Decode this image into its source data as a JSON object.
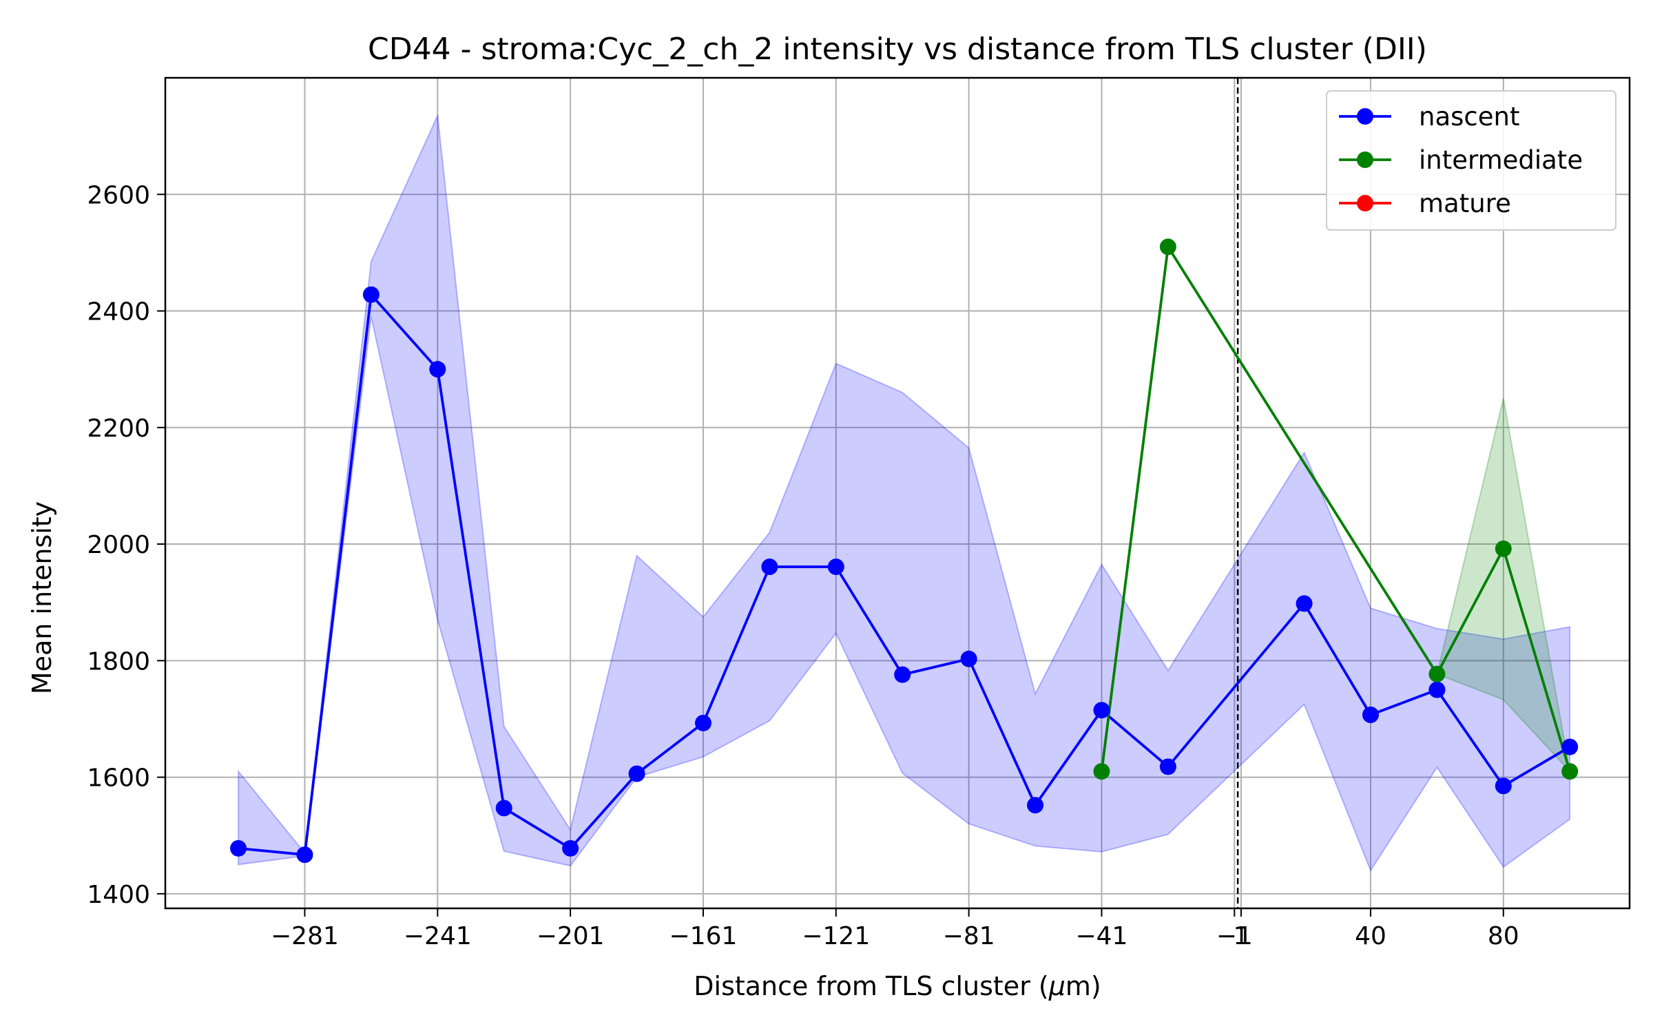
{
  "chart_data": {
    "type": "line",
    "title": "CD44 - stroma:Cyc_2_ch_2 intensity vs distance from TLS cluster (DII)",
    "xlabel": "Distance from TLS cluster (μm)",
    "ylabel": "Mean intensity",
    "xlim": [
      -323,
      118
    ],
    "ylim": [
      1375,
      2800
    ],
    "x_ticks": [
      -281,
      -241,
      -201,
      -161,
      -121,
      -81,
      -41,
      -1,
      1,
      40,
      80
    ],
    "x_tick_labels": [
      "−281",
      "−241",
      "−201",
      "−161",
      "−121",
      "−81",
      "−41",
      "−1",
      "1",
      "40",
      "80"
    ],
    "y_ticks": [
      1400,
      1600,
      1800,
      2000,
      2200,
      2400,
      2600
    ],
    "y_tick_labels": [
      "1400",
      "1600",
      "1800",
      "2000",
      "2200",
      "2400",
      "2600"
    ],
    "grid": true,
    "legend_position": "top-right",
    "reference_line": {
      "x": 0,
      "style": "dashed",
      "color": "#000000"
    },
    "series": [
      {
        "name": "nascent",
        "color": "#0000ff",
        "band_color": "#0000ff",
        "points": [
          {
            "x": -301,
            "y": 1478,
            "lo": 1450,
            "hi": 1610
          },
          {
            "x": -281,
            "y": 1467,
            "lo": 1465,
            "hi": 1470
          },
          {
            "x": -261,
            "y": 2428,
            "lo": 2390,
            "hi": 2485
          },
          {
            "x": -241,
            "y": 2300,
            "lo": 1870,
            "hi": 2735
          },
          {
            "x": -221,
            "y": 1547,
            "lo": 1473,
            "hi": 1687
          },
          {
            "x": -201,
            "y": 1478,
            "lo": 1448,
            "hi": 1510
          },
          {
            "x": -181,
            "y": 1606,
            "lo": 1600,
            "hi": 1980
          },
          {
            "x": -161,
            "y": 1693,
            "lo": 1635,
            "hi": 1875
          },
          {
            "x": -141,
            "y": 1961,
            "lo": 1697,
            "hi": 2020
          },
          {
            "x": -121,
            "y": 1961,
            "lo": 1847,
            "hi": 2310
          },
          {
            "x": -101,
            "y": 1776,
            "lo": 1607,
            "hi": 2260
          },
          {
            "x": -81,
            "y": 1803,
            "lo": 1520,
            "hi": 2165
          },
          {
            "x": -61,
            "y": 1552,
            "lo": 1482,
            "hi": 1743
          },
          {
            "x": -41,
            "y": 1715,
            "lo": 1472,
            "hi": 1965
          },
          {
            "x": -21,
            "y": 1618,
            "lo": 1502,
            "hi": 1783
          },
          {
            "x": 20,
            "y": 1898,
            "lo": 1725,
            "hi": 2157
          },
          {
            "x": 40,
            "y": 1707,
            "lo": 1440,
            "hi": 1890
          },
          {
            "x": 60,
            "y": 1750,
            "lo": 1617,
            "hi": 1855
          },
          {
            "x": 80,
            "y": 1585,
            "lo": 1446,
            "hi": 1837
          },
          {
            "x": 100,
            "y": 1652,
            "lo": 1528,
            "hi": 1858
          }
        ]
      },
      {
        "name": "intermediate",
        "color": "#008000",
        "band_color": "#008000",
        "points": [
          {
            "x": -41,
            "y": 1610
          },
          {
            "x": -21,
            "y": 2510
          },
          {
            "x": 60,
            "y": 1777,
            "lo": 1777,
            "hi": 1777
          },
          {
            "x": 80,
            "y": 1992,
            "lo": 1733,
            "hi": 2250
          },
          {
            "x": 100,
            "y": 1610,
            "lo": 1610,
            "hi": 1610
          }
        ]
      },
      {
        "name": "mature",
        "color": "#ff0000",
        "points": []
      }
    ]
  }
}
